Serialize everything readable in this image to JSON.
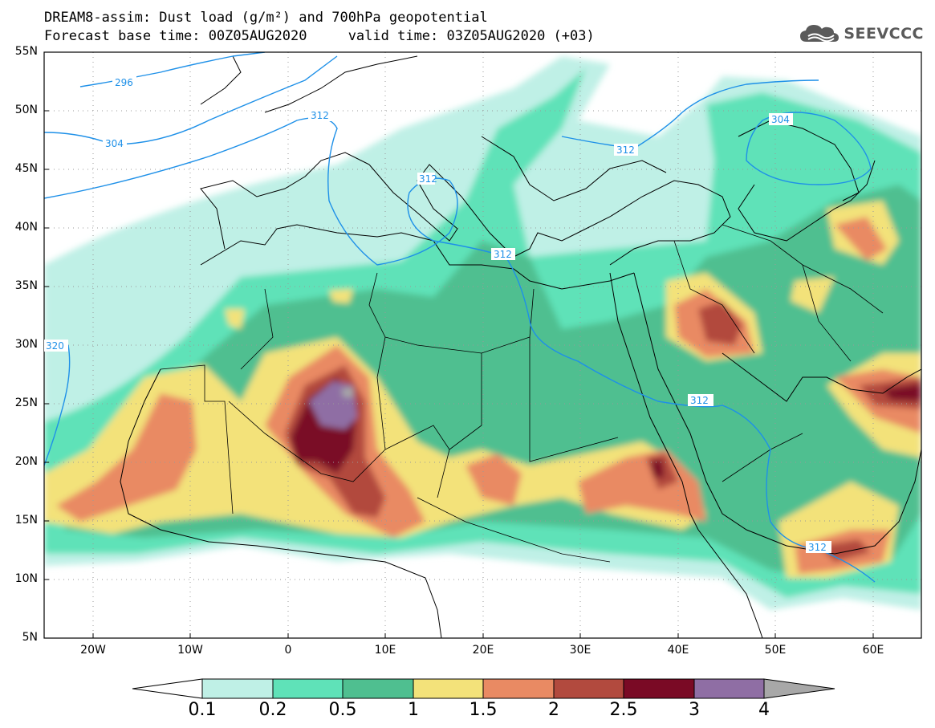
{
  "title": {
    "line1": "DREAM8-assim: Dust load (g/m²) and 700hPa geopotential",
    "line2": "Forecast base time: 00Z05AUG2020     valid time: 03Z05AUG2020 (+03)"
  },
  "logo": {
    "text": "SEEVCCC"
  },
  "axes": {
    "lat_labels": [
      "55N",
      "50N",
      "45N",
      "40N",
      "35N",
      "30N",
      "25N",
      "20N",
      "15N",
      "10N",
      "5N"
    ],
    "lon_labels": [
      "20W",
      "10W",
      "0",
      "10E",
      "20E",
      "30E",
      "40E",
      "50E",
      "60E"
    ]
  },
  "contour_labels": [
    "296",
    "304",
    "312",
    "304",
    "312",
    "312",
    "320",
    "312",
    "312",
    "312"
  ],
  "colorbar": {
    "ticks": [
      "0.1",
      "0.2",
      "0.5",
      "1",
      "1.5",
      "2",
      "2.5",
      "3",
      "4"
    ],
    "colors": [
      "#ffffff",
      "#bff0e6",
      "#5fe2b8",
      "#4fbf90",
      "#f3e27a",
      "#e98a63",
      "#b24a3e",
      "#7a0a25",
      "#8f6ea4",
      "#a8a8a8"
    ]
  },
  "colors": {
    "contour": "#1e90e8",
    "coastline": "#000000",
    "grid": "#999999"
  }
}
